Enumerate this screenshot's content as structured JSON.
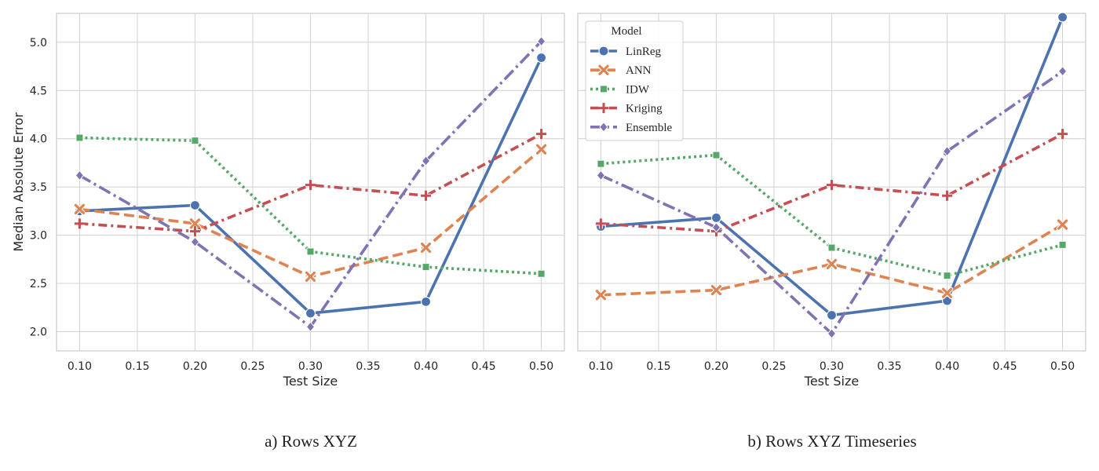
{
  "figure": {
    "captions": [
      "a) Rows XYZ",
      "b) Rows XYZ Timeseries"
    ]
  },
  "chart_data": [
    {
      "type": "line",
      "title": "",
      "xlabel": "Test Size",
      "ylabel": "Median Absolute Error",
      "xlim": [
        0.08,
        0.52
      ],
      "ylim": [
        1.8,
        5.3
      ],
      "xticks": [
        "0.10",
        "0.15",
        "0.20",
        "0.25",
        "0.30",
        "0.35",
        "0.40",
        "0.45",
        "0.50"
      ],
      "yticks": [
        "2.0",
        "2.5",
        "3.0",
        "3.5",
        "4.0",
        "4.5",
        "5.0"
      ],
      "grid": true,
      "x": [
        0.1,
        0.2,
        0.3,
        0.4,
        0.5
      ],
      "series": [
        {
          "name": "LinReg",
          "values": [
            3.25,
            3.31,
            2.19,
            2.31,
            4.84
          ],
          "color": "#4c72b0",
          "dash": "solid",
          "marker": "circle"
        },
        {
          "name": "ANN",
          "values": [
            3.27,
            3.12,
            2.57,
            2.87,
            3.89
          ],
          "color": "#dd8452",
          "dash": "dashed",
          "marker": "x"
        },
        {
          "name": "IDW",
          "values": [
            4.01,
            3.98,
            2.83,
            2.67,
            2.6
          ],
          "color": "#55a868",
          "dash": "dotted",
          "marker": "square"
        },
        {
          "name": "Kriging",
          "values": [
            3.12,
            3.04,
            3.52,
            3.41,
            4.05
          ],
          "color": "#c44e52",
          "dash": "dashdot",
          "marker": "plus"
        },
        {
          "name": "Ensemble",
          "values": [
            3.62,
            2.93,
            2.05,
            3.77,
            5.01
          ],
          "color": "#8172b3",
          "dash": "dashdotlong",
          "marker": "diamond"
        }
      ]
    },
    {
      "type": "line",
      "title": "",
      "xlabel": "Test Size",
      "ylabel": "",
      "xlim": [
        0.08,
        0.52
      ],
      "ylim": [
        1.8,
        5.3
      ],
      "xticks": [
        "0.10",
        "0.15",
        "0.20",
        "0.25",
        "0.30",
        "0.35",
        "0.40",
        "0.45",
        "0.50"
      ],
      "grid": true,
      "legend": {
        "title": "Model",
        "placement": "top-left"
      },
      "x": [
        0.1,
        0.2,
        0.3,
        0.4,
        0.5
      ],
      "series": [
        {
          "name": "LinReg",
          "values": [
            3.09,
            3.18,
            2.17,
            2.32,
            5.26
          ],
          "color": "#4c72b0",
          "dash": "solid",
          "marker": "circle"
        },
        {
          "name": "ANN",
          "values": [
            2.38,
            2.43,
            2.7,
            2.4,
            3.11
          ],
          "color": "#dd8452",
          "dash": "dashed",
          "marker": "x"
        },
        {
          "name": "IDW",
          "values": [
            3.74,
            3.83,
            2.87,
            2.58,
            2.9
          ],
          "color": "#55a868",
          "dash": "dotted",
          "marker": "square"
        },
        {
          "name": "Kriging",
          "values": [
            3.12,
            3.04,
            3.52,
            3.41,
            4.05
          ],
          "color": "#c44e52",
          "dash": "dashdot",
          "marker": "plus"
        },
        {
          "name": "Ensemble",
          "values": [
            3.62,
            3.08,
            1.98,
            3.87,
            4.7
          ],
          "color": "#8172b3",
          "dash": "dashdotlong",
          "marker": "diamond"
        }
      ]
    }
  ]
}
